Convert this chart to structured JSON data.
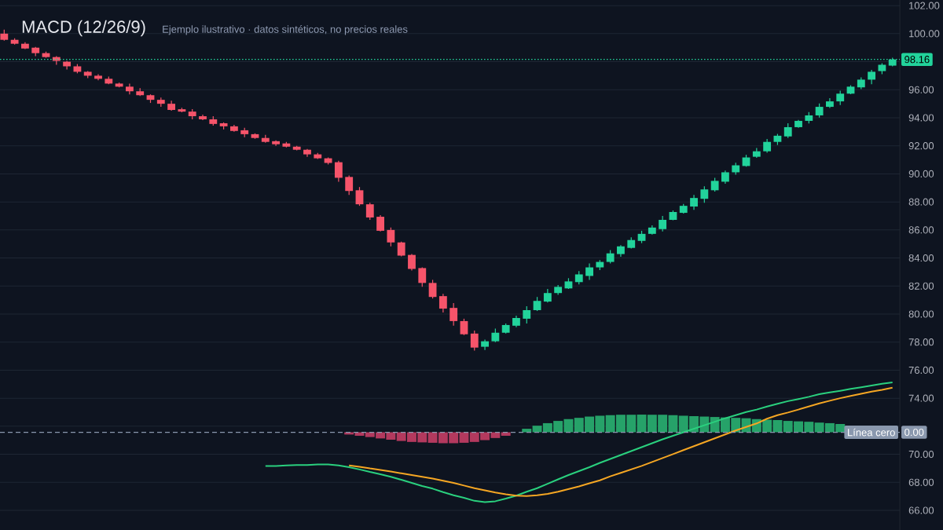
{
  "chart_data": {
    "type": "candlestick",
    "title": "MACD (12/26/9)",
    "subtitle": "Ejemplo ilustrativo · datos sintéticos, no precios reales",
    "categories": [
      null,
      null,
      null,
      null,
      null,
      null,
      null,
      null,
      null,
      null,
      null,
      null,
      null,
      null,
      null,
      null,
      null,
      null,
      null,
      null,
      null,
      null,
      null,
      null,
      null,
      null,
      null,
      null,
      null,
      null,
      null,
      null,
      null,
      null,
      null,
      null,
      null,
      null,
      null,
      null,
      null,
      null,
      null,
      null,
      null,
      null,
      null,
      null,
      null,
      null,
      null,
      null,
      null,
      null,
      null,
      null,
      null,
      null,
      null,
      null,
      null,
      null,
      null,
      null,
      null,
      null,
      null,
      null,
      null,
      null,
      null,
      null,
      null,
      null,
      null,
      null,
      null,
      null,
      null,
      null,
      null,
      null,
      null,
      null,
      null,
      null
    ],
    "ohlc": [
      [
        100.0,
        100.28,
        99.5,
        99.56
      ],
      [
        99.56,
        99.67,
        99.22,
        99.28
      ],
      [
        99.28,
        99.39,
        98.9,
        98.94
      ],
      [
        99.0,
        99.06,
        98.39,
        98.61
      ],
      [
        98.61,
        98.72,
        98.28,
        98.33
      ],
      [
        98.33,
        98.39,
        97.78,
        98.06
      ],
      [
        98.0,
        98.06,
        97.44,
        97.67
      ],
      [
        97.67,
        97.83,
        97.17,
        97.28
      ],
      [
        97.28,
        97.33,
        96.83,
        97.0
      ],
      [
        97.0,
        97.11,
        96.67,
        96.78
      ],
      [
        96.78,
        96.94,
        96.39,
        96.44
      ],
      [
        96.44,
        96.5,
        96.17,
        96.22
      ],
      [
        96.22,
        96.44,
        95.67,
        95.89
      ],
      [
        95.89,
        96.11,
        95.56,
        95.61
      ],
      [
        95.61,
        95.67,
        95.06,
        95.28
      ],
      [
        95.28,
        95.44,
        94.78,
        95.0
      ],
      [
        95.0,
        95.22,
        94.5,
        94.56
      ],
      [
        94.61,
        94.72,
        94.39,
        94.44
      ],
      [
        94.44,
        94.61,
        93.89,
        94.11
      ],
      [
        94.11,
        94.22,
        93.83,
        93.89
      ],
      [
        93.89,
        94.11,
        93.44,
        93.56
      ],
      [
        93.61,
        93.67,
        93.17,
        93.39
      ],
      [
        93.39,
        93.5,
        93.0,
        93.06
      ],
      [
        93.11,
        93.28,
        92.61,
        92.83
      ],
      [
        92.83,
        92.89,
        92.5,
        92.56
      ],
      [
        92.56,
        92.78,
        92.22,
        92.28
      ],
      [
        92.33,
        92.39,
        92.0,
        92.11
      ],
      [
        92.17,
        92.28,
        91.89,
        91.94
      ],
      [
        91.94,
        92.0,
        91.67,
        91.72
      ],
      [
        91.72,
        91.78,
        91.22,
        91.39
      ],
      [
        91.39,
        91.5,
        91.06,
        91.11
      ],
      [
        91.11,
        91.17,
        90.67,
        90.78
      ],
      [
        90.83,
        90.94,
        89.44,
        89.72
      ],
      [
        89.78,
        89.89,
        88.5,
        88.78
      ],
      [
        88.83,
        89.06,
        87.72,
        87.83
      ],
      [
        87.83,
        87.94,
        86.72,
        86.89
      ],
      [
        86.94,
        87.06,
        85.89,
        85.94
      ],
      [
        86.0,
        86.17,
        84.83,
        85.11
      ],
      [
        85.11,
        85.17,
        84.11,
        84.17
      ],
      [
        84.22,
        84.28,
        83.11,
        83.22
      ],
      [
        83.28,
        83.33,
        81.94,
        82.22
      ],
      [
        82.22,
        82.44,
        81.11,
        81.22
      ],
      [
        81.28,
        81.44,
        80.11,
        80.39
      ],
      [
        80.44,
        80.78,
        79.17,
        79.5
      ],
      [
        79.5,
        79.67,
        78.5,
        78.56
      ],
      [
        78.61,
        78.83,
        77.39,
        77.61
      ],
      [
        77.67,
        78.18,
        77.44,
        78.06
      ],
      [
        78.06,
        78.97,
        78.0,
        78.67
      ],
      [
        78.67,
        79.33,
        78.61,
        79.22
      ],
      [
        79.17,
        79.89,
        79.06,
        79.72
      ],
      [
        79.67,
        80.56,
        79.33,
        80.28
      ],
      [
        80.28,
        81.22,
        80.22,
        80.94
      ],
      [
        80.89,
        81.79,
        80.83,
        81.5
      ],
      [
        81.5,
        82.07,
        81.37,
        81.94
      ],
      [
        81.83,
        82.56,
        81.79,
        82.33
      ],
      [
        82.28,
        83.06,
        82.11,
        82.83
      ],
      [
        82.72,
        83.61,
        82.44,
        83.33
      ],
      [
        83.33,
        83.85,
        83.13,
        83.72
      ],
      [
        83.72,
        84.56,
        83.61,
        84.33
      ],
      [
        84.28,
        84.92,
        84.09,
        84.83
      ],
      [
        84.72,
        85.47,
        84.67,
        85.28
      ],
      [
        85.22,
        85.94,
        85.06,
        85.72
      ],
      [
        85.72,
        86.33,
        85.67,
        86.17
      ],
      [
        86.06,
        87.0,
        85.89,
        86.72
      ],
      [
        86.72,
        87.39,
        86.69,
        87.28
      ],
      [
        87.22,
        87.85,
        87.17,
        87.72
      ],
      [
        87.67,
        88.5,
        87.44,
        88.28
      ],
      [
        88.22,
        89.11,
        87.94,
        88.89
      ],
      [
        88.83,
        89.72,
        88.74,
        89.5
      ],
      [
        89.44,
        90.23,
        89.3,
        90.11
      ],
      [
        90.11,
        90.79,
        89.94,
        90.61
      ],
      [
        90.56,
        91.36,
        90.51,
        91.17
      ],
      [
        91.22,
        91.85,
        91.15,
        91.61
      ],
      [
        91.61,
        92.49,
        91.51,
        92.28
      ],
      [
        92.28,
        92.85,
        92.06,
        92.72
      ],
      [
        92.67,
        93.61,
        92.56,
        93.33
      ],
      [
        93.33,
        93.85,
        93.28,
        93.78
      ],
      [
        93.78,
        94.4,
        93.59,
        94.17
      ],
      [
        94.17,
        95.02,
        94.02,
        94.78
      ],
      [
        94.78,
        95.4,
        94.7,
        95.17
      ],
      [
        95.17,
        95.93,
        94.91,
        95.72
      ],
      [
        95.72,
        96.32,
        95.68,
        96.22
      ],
      [
        96.17,
        96.89,
        96.04,
        96.72
      ],
      [
        96.72,
        97.42,
        96.4,
        97.28
      ],
      [
        97.33,
        97.89,
        97.11,
        97.78
      ],
      [
        97.72,
        98.28,
        97.67,
        98.16
      ]
    ],
    "colors": [
      "#f6546a",
      "#f6546a",
      "#f6546a",
      "#f6546a",
      "#f6546a",
      "#f6546a",
      "#f6546a",
      "#f6546a",
      "#f6546a",
      "#f6546a",
      "#f6546a",
      "#f6546a",
      "#f6546a",
      "#f6546a",
      "#f6546a",
      "#f6546a",
      "#f6546a",
      "#f6546a",
      "#f6546a",
      "#f6546a",
      "#f6546a",
      "#f6546a",
      "#f6546a",
      "#f6546a",
      "#f6546a",
      "#f6546a",
      "#f6546a",
      "#f6546a",
      "#f6546a",
      "#f6546a",
      "#f6546a",
      "#f6546a",
      "#f6546a",
      "#f6546a",
      "#f6546a",
      "#f6546a",
      "#f6546a",
      "#f6546a",
      "#f6546a",
      "#f6546a",
      "#f6546a",
      "#f6546a",
      "#f6546a",
      "#f6546a",
      "#f6546a",
      "#f6546a",
      "#22d39b",
      "#22d39b",
      "#22d39b",
      "#22d39b",
      "#22d39b",
      "#22d39b",
      "#22d39b",
      "#22d39b",
      "#22d39b",
      "#22d39b",
      "#22d39b",
      "#22d39b",
      "#22d39b",
      "#22d39b",
      "#22d39b",
      "#22d39b",
      "#22d39b",
      "#22d39b",
      "#22d39b",
      "#22d39b",
      "#22d39b",
      "#22d39b",
      "#22d39b",
      "#22d39b",
      "#22d39b",
      "#22d39b",
      "#22d39b",
      "#22d39b",
      "#22d39b",
      "#22d39b",
      "#22d39b",
      "#22d39b",
      "#22d39b",
      "#22d39b",
      "#22d39b",
      "#22d39b",
      "#22d39b",
      "#22d39b",
      "#22d39b",
      "#22d39b"
    ],
    "series": [
      {
        "type": "bar",
        "color": "#b3395e",
        "base": [
          null,
          null,
          null,
          null,
          null,
          null,
          null,
          null,
          null,
          null,
          null,
          null,
          null,
          null,
          null,
          null,
          null,
          null,
          null,
          null,
          null,
          null,
          null,
          null,
          null,
          null,
          null,
          null,
          null,
          null,
          null,
          null,
          null,
          71.57,
          71.57,
          71.57,
          71.57,
          71.57,
          71.57,
          71.57,
          71.57,
          71.57,
          71.57,
          71.57,
          71.57,
          71.57,
          71.57,
          71.57,
          71.57,
          null,
          null,
          null,
          null,
          null,
          null,
          null,
          null,
          null,
          null,
          null,
          null,
          null,
          null,
          null,
          null,
          null,
          null,
          null,
          null,
          null,
          null,
          null,
          null,
          null,
          null,
          null,
          null,
          null,
          null,
          null,
          null,
          null,
          null,
          null,
          null,
          null
        ],
        "values": [
          null,
          null,
          null,
          null,
          null,
          null,
          null,
          null,
          null,
          null,
          null,
          null,
          null,
          null,
          null,
          null,
          null,
          null,
          null,
          null,
          null,
          null,
          null,
          null,
          null,
          null,
          null,
          null,
          null,
          null,
          null,
          null,
          null,
          -0.16,
          -0.25,
          -0.34,
          -0.44,
          -0.53,
          -0.62,
          -0.69,
          -0.72,
          -0.75,
          -0.78,
          -0.78,
          -0.75,
          -0.69,
          -0.56,
          -0.41,
          -0.25,
          null,
          null,
          null,
          null,
          null,
          null,
          null,
          null,
          null,
          null,
          null,
          null,
          null,
          null,
          null,
          null,
          null,
          null,
          null,
          null,
          null,
          null,
          null,
          null,
          null,
          null,
          null,
          null,
          null,
          null,
          null,
          null,
          null,
          null,
          null,
          null,
          null
        ]
      },
      {
        "type": "bar",
        "color": "#26a269",
        "base": [
          null,
          null,
          null,
          null,
          null,
          null,
          null,
          null,
          null,
          null,
          null,
          null,
          null,
          null,
          null,
          null,
          null,
          null,
          null,
          null,
          null,
          null,
          null,
          null,
          null,
          null,
          null,
          null,
          null,
          null,
          null,
          null,
          null,
          null,
          null,
          null,
          null,
          null,
          null,
          null,
          null,
          null,
          null,
          null,
          null,
          null,
          null,
          null,
          null,
          null,
          71.57,
          71.57,
          71.57,
          71.57,
          71.57,
          71.57,
          71.57,
          71.57,
          71.57,
          71.57,
          71.57,
          71.57,
          71.57,
          71.57,
          71.57,
          71.57,
          71.57,
          71.57,
          71.57,
          71.57,
          71.57,
          71.57,
          71.57,
          71.57,
          71.57,
          71.57,
          71.57,
          71.57,
          71.57,
          71.57,
          71.57,
          null,
          null,
          null,
          null,
          null
        ],
        "values": [
          null,
          null,
          null,
          null,
          null,
          null,
          null,
          null,
          null,
          null,
          null,
          null,
          null,
          null,
          null,
          null,
          null,
          null,
          null,
          null,
          null,
          null,
          null,
          null,
          null,
          null,
          null,
          null,
          null,
          null,
          null,
          null,
          null,
          null,
          null,
          null,
          null,
          null,
          null,
          null,
          null,
          null,
          null,
          null,
          null,
          null,
          null,
          null,
          null,
          null,
          0.25,
          0.47,
          0.65,
          0.81,
          0.94,
          1.03,
          1.12,
          1.18,
          1.22,
          1.25,
          1.25,
          1.26,
          1.25,
          1.25,
          1.22,
          1.18,
          1.15,
          1.12,
          1.09,
          1.06,
          1.03,
          1.0,
          0.94,
          0.9,
          0.87,
          0.81,
          0.78,
          0.75,
          0.69,
          0.65,
          0.59,
          null,
          null,
          null,
          null,
          null
        ]
      },
      {
        "type": "line",
        "color": "#2ad07e",
        "values": [
          null,
          null,
          null,
          null,
          null,
          null,
          null,
          null,
          null,
          null,
          null,
          null,
          null,
          null,
          null,
          null,
          null,
          null,
          null,
          null,
          null,
          null,
          null,
          null,
          null,
          69.17,
          69.17,
          69.2,
          69.24,
          69.24,
          69.27,
          69.27,
          69.2,
          69.08,
          68.92,
          68.74,
          68.58,
          68.39,
          68.18,
          67.96,
          67.74,
          67.55,
          67.3,
          67.08,
          66.9,
          66.68,
          66.59,
          66.65,
          66.84,
          67.05,
          67.33,
          67.58,
          67.9,
          68.21,
          68.52,
          68.8,
          69.08,
          69.39,
          69.67,
          69.95,
          70.23,
          70.51,
          70.79,
          71.07,
          71.32,
          71.57,
          71.82,
          72.07,
          72.32,
          72.57,
          72.79,
          73.01,
          73.19,
          73.41,
          73.6,
          73.79,
          73.94,
          74.1,
          74.29,
          74.41,
          74.53,
          74.66,
          74.78,
          74.91,
          75.03,
          75.13
        ]
      },
      {
        "type": "line",
        "color": "#f5a623",
        "values": [
          null,
          null,
          null,
          null,
          null,
          null,
          null,
          null,
          null,
          null,
          null,
          null,
          null,
          null,
          null,
          null,
          null,
          null,
          null,
          null,
          null,
          null,
          null,
          null,
          null,
          null,
          null,
          null,
          null,
          null,
          null,
          null,
          null,
          69.2,
          69.11,
          68.99,
          68.89,
          68.77,
          68.64,
          68.52,
          68.39,
          68.27,
          68.11,
          67.96,
          67.77,
          67.58,
          67.43,
          67.27,
          67.15,
          67.05,
          67.02,
          67.08,
          67.18,
          67.33,
          67.52,
          67.71,
          67.93,
          68.14,
          68.43,
          68.67,
          68.92,
          69.17,
          69.45,
          69.73,
          70.01,
          70.3,
          70.58,
          70.86,
          71.14,
          71.42,
          71.7,
          71.95,
          72.2,
          72.54,
          72.79,
          72.98,
          73.19,
          73.41,
          73.63,
          73.82,
          74.0,
          74.16,
          74.32,
          74.47,
          74.6,
          74.75
        ]
      }
    ],
    "ylim": [
      64.6,
      102.4
    ],
    "yticks": [
      {
        "value": 66,
        "label": "66.00"
      },
      {
        "value": 68,
        "label": "68.00"
      },
      {
        "value": 70,
        "label": "70.00"
      },
      {
        "value": 72,
        "label": null
      },
      {
        "value": 74,
        "label": "74.00"
      },
      {
        "value": 76,
        "label": "76.00"
      },
      {
        "value": 78,
        "label": "78.00"
      },
      {
        "value": 80,
        "label": "80.00"
      },
      {
        "value": 82,
        "label": "82.00"
      },
      {
        "value": 84,
        "label": "84.00"
      },
      {
        "value": 86,
        "label": "86.00"
      },
      {
        "value": 88,
        "label": "88.00"
      },
      {
        "value": 90,
        "label": "90.00"
      },
      {
        "value": 92,
        "label": "92.00"
      },
      {
        "value": 94,
        "label": "94.00"
      },
      {
        "value": 96,
        "label": "96.00"
      },
      {
        "value": 98,
        "label": null
      },
      {
        "value": 100,
        "label": "100.00"
      },
      {
        "value": 102,
        "label": "102.00"
      }
    ],
    "grid": "y",
    "tick_labels": "y",
    "ref_lines": [
      {
        "axis": "y",
        "value": 98.16,
        "label": "98.16",
        "color": "#22d39b",
        "line_style": "dotted"
      },
      {
        "axis": "y",
        "value": 71.57,
        "color": "#8a98ae",
        "line_style": "dashed"
      }
    ],
    "annotations": [
      {
        "text": "Línea cero",
        "y": 71.57
      },
      {
        "text": "0.00",
        "y": 71.57
      }
    ]
  }
}
